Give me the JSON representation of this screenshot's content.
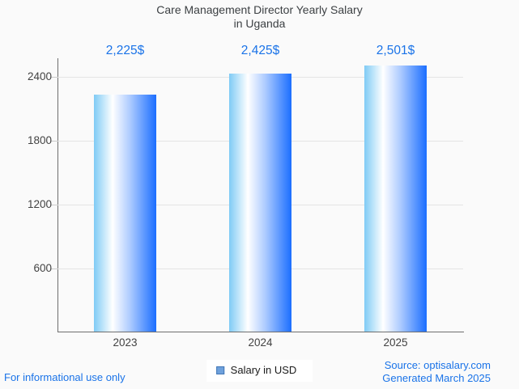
{
  "title": {
    "line1": "Care Management Director Yearly Salary",
    "line2": "in Uganda"
  },
  "chart_data": {
    "type": "bar",
    "title": "Care Management Director Yearly Salary in Uganda",
    "categories": [
      "2023",
      "2024",
      "2025"
    ],
    "values": [
      2225,
      2425,
      2501
    ],
    "value_labels": [
      "2,225$",
      "2,425$",
      "2,501$"
    ],
    "series": [
      {
        "name": "Salary in USD",
        "values": [
          2225,
          2425,
          2501
        ]
      }
    ],
    "xlabel": "",
    "ylabel": "",
    "y_ticks": [
      600,
      1200,
      1800,
      2400
    ],
    "ylim": [
      0,
      2575
    ],
    "grid": true,
    "legend_position": "bottom",
    "bar_gradient": [
      "#7fcbf5",
      "#ffffff",
      "#1b6eff"
    ]
  },
  "legend": {
    "label": "Salary in USD",
    "swatch_color": "#6fa1dc"
  },
  "footer": {
    "disclaimer": "For informational use only",
    "source": "Source: optisalary.com",
    "generated": "Generated March 2025"
  },
  "colors": {
    "background": "#fafafa",
    "accent_blue": "#1a73e8",
    "title_text": "#3c4043",
    "axis_line": "#6e6e6e",
    "gridline": "#e4e4e4",
    "tick_label": "#424242"
  }
}
